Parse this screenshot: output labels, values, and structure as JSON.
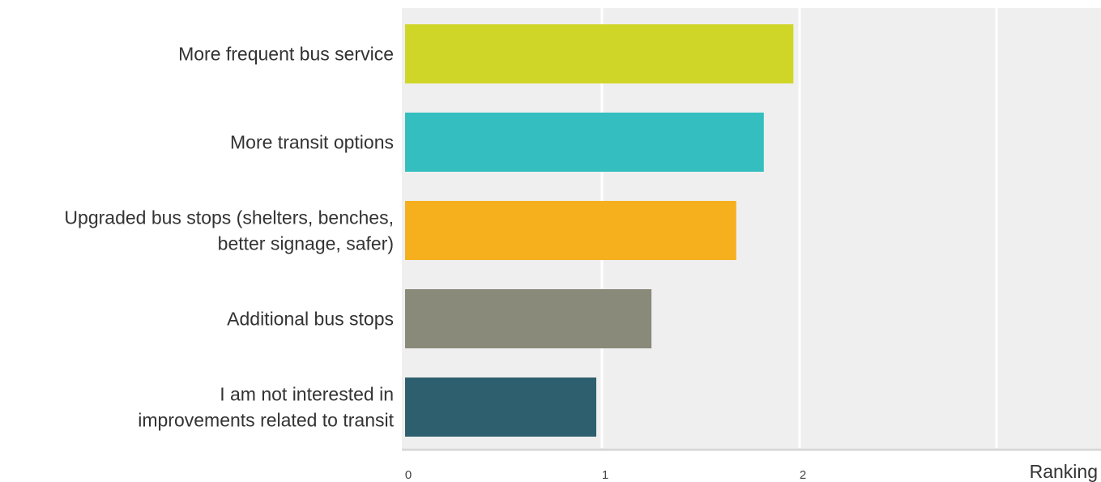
{
  "chart_data": {
    "type": "bar",
    "orientation": "horizontal",
    "categories": [
      [
        "More frequent bus service"
      ],
      [
        "More transit options"
      ],
      [
        "Upgraded bus stops (shelters, benches,",
        "better signage, safer)"
      ],
      [
        "Additional bus stops"
      ],
      [
        "I am not interested in",
        "improvements related to transit"
      ]
    ],
    "values": [
      1.97,
      1.82,
      1.68,
      1.25,
      0.97
    ],
    "colors": [
      "#d0d627",
      "#34bec0",
      "#f6b01e",
      "#8a8a7a",
      "#2e5f6e"
    ],
    "xlabel": "Ranking",
    "ylabel": "",
    "xlim": [
      0,
      3.5
    ],
    "xticks": [
      0,
      1,
      2
    ],
    "grid": true,
    "plot_background": "#efefef",
    "gridline_color": "#ffffff",
    "axis_color": "#d6d6d6"
  }
}
